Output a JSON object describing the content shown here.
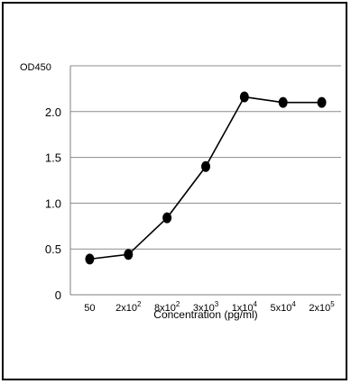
{
  "chart_data": {
    "type": "line",
    "title": "",
    "xlabel": "Concentration (pg/ml)",
    "ylabel": "OD450",
    "categories": [
      {
        "base": "50",
        "exp": ""
      },
      {
        "base": "2x10",
        "exp": "2"
      },
      {
        "base": "8x10",
        "exp": "2"
      },
      {
        "base": "3x10",
        "exp": "3"
      },
      {
        "base": "1x10",
        "exp": "4"
      },
      {
        "base": "5x10",
        "exp": "4"
      },
      {
        "base": "2x10",
        "exp": "5"
      }
    ],
    "values": [
      0.39,
      0.44,
      0.84,
      1.4,
      2.16,
      2.1,
      2.1
    ],
    "ylim": [
      0,
      2.5
    ],
    "yticks": [
      "0",
      "0.5",
      "1.0",
      "1.5",
      "2.0"
    ],
    "yticks_values": [
      0,
      0.5,
      1.0,
      1.5,
      2.0
    ],
    "grid": true,
    "colors": {
      "line": "#000000",
      "marker": "#000000",
      "grid": "#8c8c8c",
      "axis": "#7f7f7f"
    }
  }
}
